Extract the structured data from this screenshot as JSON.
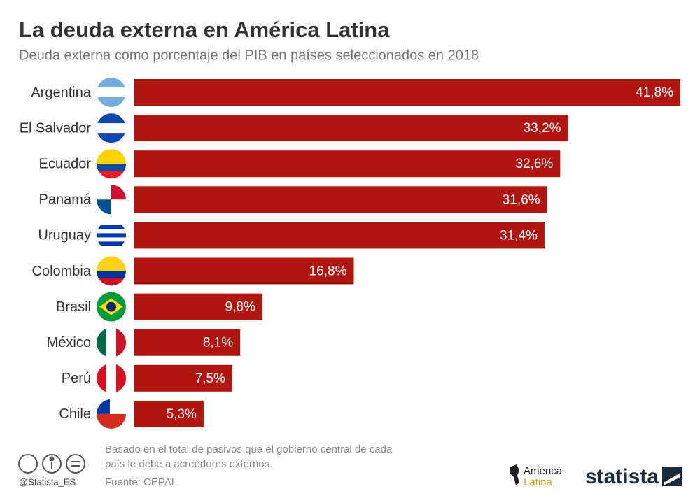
{
  "chart_data": {
    "type": "bar",
    "orientation": "horizontal",
    "title": "La deuda externa en América Latina",
    "subtitle": "Deuda externa como porcentaje del PIB en países seleccionados en 2018",
    "categories": [
      "Argentina",
      "El Salvador",
      "Ecuador",
      "Panamá",
      "Uruguay",
      "Colombia",
      "Brasil",
      "México",
      "Perú",
      "Chile"
    ],
    "values": [
      41.8,
      33.2,
      32.6,
      31.6,
      31.4,
      16.8,
      9.8,
      8.1,
      7.5,
      5.3
    ],
    "value_labels": [
      "41,8%",
      "33,2%",
      "32,6%",
      "31,6%",
      "31,4%",
      "16,8%",
      "9,8%",
      "8,1%",
      "7,5%",
      "5,3%"
    ],
    "color": "#b0160f",
    "note": [
      "Basado en el total de pasivos que el gobierno central de cada",
      "país le debe a acreedores externos."
    ],
    "source": "Fuente: CEPAL",
    "credit": "@Statista_ES",
    "partner_logo": [
      "América",
      "Latina"
    ],
    "brand": "statista"
  }
}
